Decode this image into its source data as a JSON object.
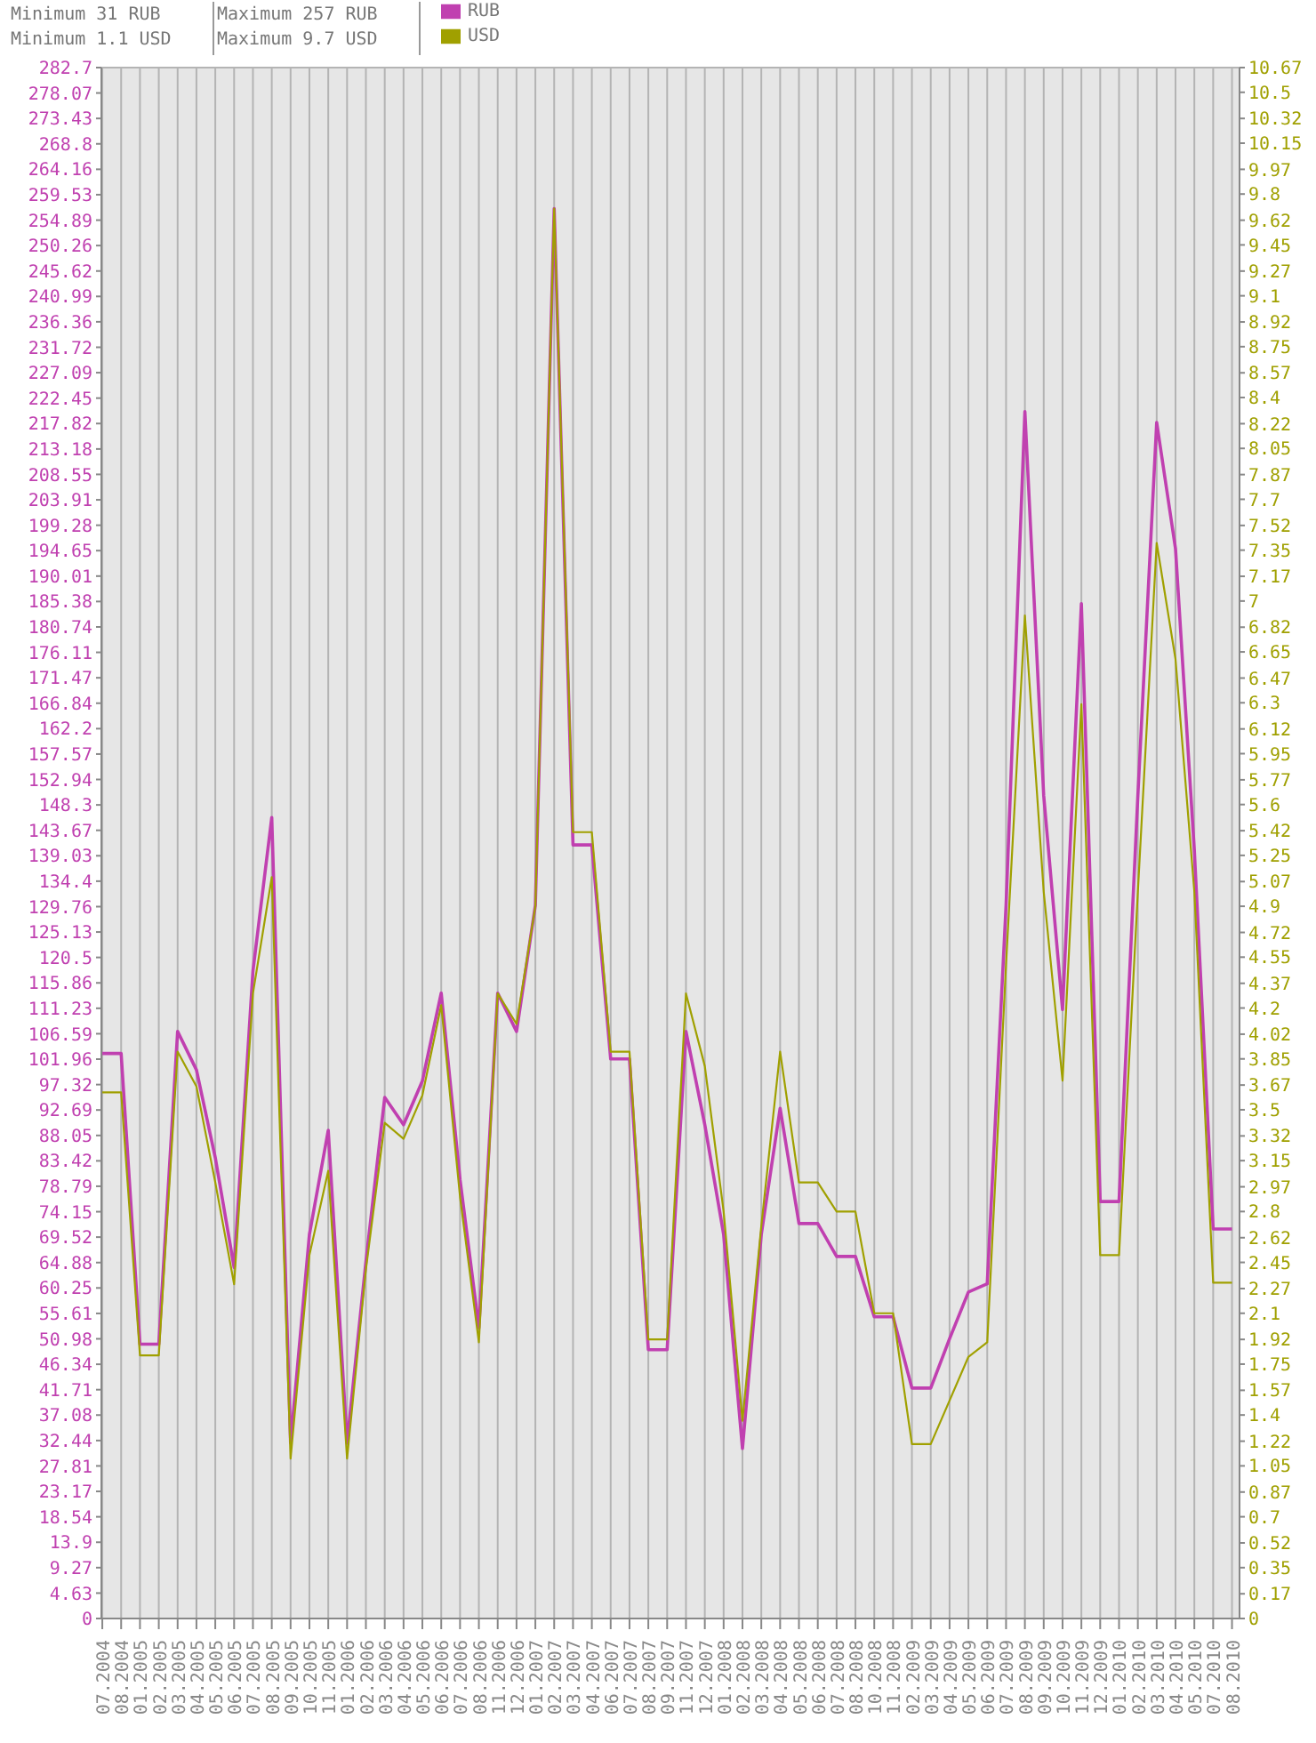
{
  "chart_data": {
    "type": "line",
    "annotations": [
      "Minimum 31 RUB",
      "Minimum 1.1 USD",
      "Maximum 257 RUB",
      "Maximum 9.7 USD"
    ],
    "categories": [
      "07.2004",
      "08.2004",
      "01.2005",
      "02.2005",
      "03.2005",
      "04.2005",
      "05.2005",
      "06.2005",
      "07.2005",
      "08.2005",
      "09.2005",
      "10.2005",
      "11.2005",
      "01.2006",
      "02.2006",
      "03.2006",
      "04.2006",
      "05.2006",
      "06.2006",
      "07.2006",
      "08.2006",
      "11.2006",
      "12.2006",
      "01.2007",
      "02.2007",
      "03.2007",
      "04.2007",
      "06.2007",
      "07.2007",
      "08.2007",
      "09.2007",
      "11.2007",
      "12.2007",
      "01.2008",
      "02.2008",
      "03.2008",
      "04.2008",
      "05.2008",
      "06.2008",
      "07.2008",
      "08.2008",
      "10.2008",
      "11.2008",
      "02.2009",
      "03.2009",
      "04.2009",
      "05.2009",
      "06.2009",
      "07.2009",
      "08.2009",
      "09.2009",
      "10.2009",
      "11.2009",
      "12.2009",
      "01.2010",
      "02.2010",
      "03.2010",
      "04.2010",
      "05.2010",
      "07.2010",
      "08.2010"
    ],
    "series": [
      {
        "name": "RUB",
        "color": "#c040b0",
        "values": [
          103,
          103,
          50,
          50,
          107,
          100,
          84,
          64,
          118,
          146,
          32,
          70,
          89,
          32,
          65,
          95,
          90,
          98,
          114,
          80,
          53,
          114,
          107,
          130,
          257,
          141,
          141,
          102,
          102,
          49,
          49,
          107,
          90,
          70,
          31,
          70,
          93,
          72,
          72,
          66,
          66,
          55,
          55,
          42,
          42,
          51,
          59.5,
          61,
          130,
          220,
          150,
          111,
          185,
          76,
          76,
          150,
          218,
          195,
          140,
          71,
          71
        ]
      },
      {
        "name": "USD",
        "color": "#a0a000",
        "axis": "y2",
        "values": [
          3.62,
          3.62,
          1.81,
          1.81,
          3.9,
          3.66,
          3.0,
          2.3,
          4.3,
          5.1,
          1.1,
          2.5,
          3.08,
          1.1,
          2.4,
          3.41,
          3.3,
          3.6,
          4.22,
          2.9,
          1.9,
          4.3,
          4.09,
          4.9,
          9.7,
          5.41,
          5.41,
          3.9,
          3.9,
          1.92,
          1.92,
          4.3,
          3.8,
          2.8,
          1.36,
          2.7,
          3.9,
          3.0,
          3.0,
          2.8,
          2.8,
          2.1,
          2.1,
          1.2,
          1.2,
          1.5,
          1.8,
          1.9,
          4.5,
          6.9,
          5.0,
          3.7,
          6.29,
          2.5,
          2.5,
          5.0,
          7.4,
          6.6,
          5.0,
          2.31,
          2.31
        ]
      }
    ],
    "ylim": [
      0,
      282.7
    ],
    "yticks": [
      0,
      4.63,
      9.27,
      13.9,
      18.54,
      23.17,
      27.81,
      32.44,
      37.08,
      41.71,
      46.34,
      50.98,
      55.61,
      60.25,
      64.88,
      69.52,
      74.15,
      78.79,
      83.42,
      88.05,
      92.69,
      97.32,
      101.96,
      106.59,
      111.23,
      115.86,
      120.5,
      125.13,
      129.76,
      134.4,
      139.03,
      143.67,
      148.3,
      152.94,
      157.57,
      162.2,
      166.84,
      171.47,
      176.11,
      180.74,
      185.38,
      190.01,
      194.65,
      199.28,
      203.91,
      208.55,
      213.18,
      217.82,
      222.45,
      227.09,
      231.72,
      236.36,
      240.99,
      245.62,
      250.26,
      254.89,
      259.53,
      264.16,
      268.8,
      273.43,
      278.07,
      282.7
    ],
    "y2lim": [
      0,
      10.67
    ],
    "y2ticks": [
      0,
      0.17,
      0.35,
      0.52,
      0.7,
      0.87,
      1.05,
      1.22,
      1.4,
      1.57,
      1.75,
      1.92,
      2.1,
      2.27,
      2.45,
      2.62,
      2.8,
      2.97,
      3.15,
      3.32,
      3.5,
      3.67,
      3.85,
      4.02,
      4.2,
      4.37,
      4.55,
      4.72,
      4.9,
      5.07,
      5.25,
      5.42,
      5.6,
      5.77,
      5.95,
      6.12,
      6.3,
      6.47,
      6.65,
      6.82,
      7,
      7.17,
      7.35,
      7.52,
      7.7,
      7.87,
      8.05,
      8.22,
      8.4,
      8.57,
      8.75,
      8.92,
      9.1,
      9.27,
      9.45,
      9.62,
      9.8,
      9.97,
      10.15,
      10.32,
      10.5,
      10.67
    ],
    "grid": true,
    "legend": "top",
    "marker": "none",
    "line_style": "solid"
  }
}
